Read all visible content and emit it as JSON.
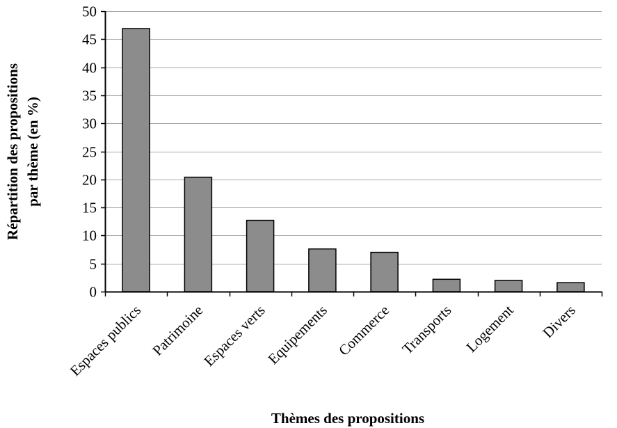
{
  "chart_data": {
    "type": "bar",
    "categories": [
      "Espaces publics",
      "Patrimoine",
      "Espaces verts",
      "Equipements",
      "Commerce",
      "Transports",
      "Logement",
      "Divers"
    ],
    "values": [
      46.9,
      20.4,
      12.7,
      7.6,
      7.0,
      2.2,
      2.0,
      1.6
    ],
    "xlabel": "Thèmes des propositions",
    "ylabel_line1": "Répartition des propositions",
    "ylabel_line2": "par thème (en %)",
    "ylim": [
      0,
      50
    ],
    "yticks": [
      0,
      5,
      10,
      15,
      20,
      25,
      30,
      35,
      40,
      45,
      50
    ],
    "grid": true,
    "bar_color": "#8c8c8c",
    "grid_color": "#a6a6a6"
  }
}
